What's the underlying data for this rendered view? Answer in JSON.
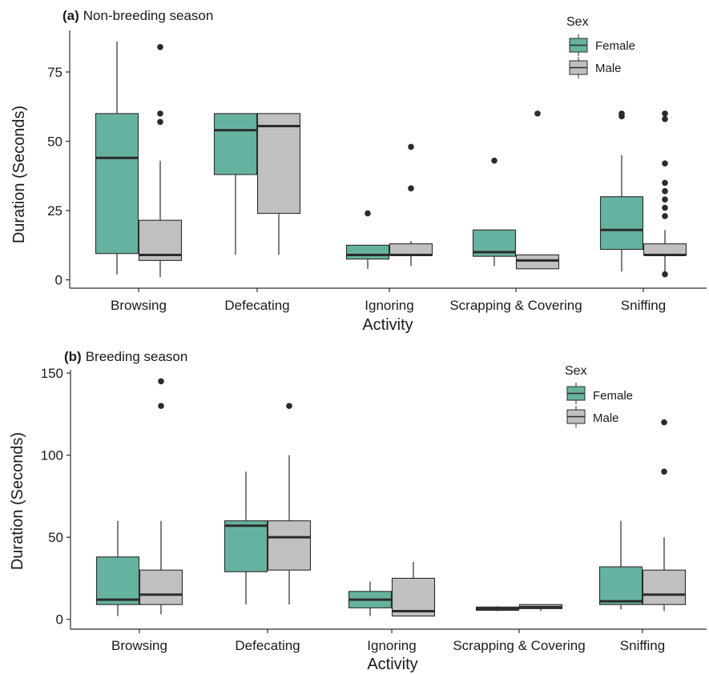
{
  "colors": {
    "female": "#66b2a0",
    "male": "#c0c0c0",
    "line": "#2b2b2b",
    "outlier": "#2b2b2b"
  },
  "chart_data": [
    {
      "type": "box",
      "panel_tag": "(a)",
      "title": "Non-breeding season",
      "xlabel": "Activity",
      "ylabel": "Duration (Seconds)",
      "ylim": [
        -3,
        90
      ],
      "yticks": [
        0,
        25,
        50,
        75
      ],
      "categories": [
        "Browsing",
        "Defecating",
        "Ignoring",
        "Scrapping & Covering",
        "Sniffing"
      ],
      "legend": {
        "title": "Sex",
        "position": "top-right"
      },
      "series": [
        {
          "name": "Female",
          "boxes": [
            {
              "min": 2,
              "q1": 9.5,
              "median": 44,
              "q3": 60,
              "max": 86,
              "outliers": []
            },
            {
              "min": 9,
              "q1": 38,
              "median": 54,
              "q3": 60,
              "max": 60,
              "outliers": []
            },
            {
              "min": 4,
              "q1": 7.5,
              "median": 9,
              "q3": 12.5,
              "max": 12.5,
              "outliers": [
                24
              ]
            },
            {
              "min": 5,
              "q1": 8.5,
              "median": 10,
              "q3": 18,
              "max": 18,
              "outliers": [
                43
              ]
            },
            {
              "min": 3,
              "q1": 11,
              "median": 18,
              "q3": 30,
              "max": 45,
              "outliers": [
                59,
                60
              ]
            }
          ]
        },
        {
          "name": "Male",
          "boxes": [
            {
              "min": 1,
              "q1": 7,
              "median": 9,
              "q3": 21.5,
              "max": 43,
              "outliers": [
                57,
                60,
                84
              ]
            },
            {
              "min": 9,
              "q1": 24,
              "median": 55.5,
              "q3": 60,
              "max": 60,
              "outliers": []
            },
            {
              "min": 5,
              "q1": 9,
              "median": 9,
              "q3": 13,
              "max": 14,
              "outliers": [
                33,
                48
              ]
            },
            {
              "min": 4,
              "q1": 4,
              "median": 7,
              "q3": 9,
              "max": 9,
              "outliers": [
                60
              ]
            },
            {
              "min": 2,
              "q1": 9,
              "median": 9,
              "q3": 13,
              "max": 18,
              "outliers": [
                2,
                23,
                26,
                29,
                32,
                35,
                42,
                58,
                60
              ]
            }
          ]
        }
      ]
    },
    {
      "type": "box",
      "panel_tag": "(b)",
      "title": "Breeding season",
      "xlabel": "Activity",
      "ylabel": "Duration (Seconds)",
      "ylim": [
        -6,
        152
      ],
      "yticks": [
        0,
        50,
        100,
        150
      ],
      "categories": [
        "Browsing",
        "Defecating",
        "Ignoring",
        "Scrapping & Covering",
        "Sniffing"
      ],
      "legend": {
        "title": "Sex",
        "position": "top-right"
      },
      "series": [
        {
          "name": "Female",
          "boxes": [
            {
              "min": 2,
              "q1": 9,
              "median": 12,
              "q3": 38,
              "max": 60,
              "outliers": []
            },
            {
              "min": 9,
              "q1": 29,
              "median": 57,
              "q3": 60,
              "max": 90,
              "outliers": []
            },
            {
              "min": 2,
              "q1": 7,
              "median": 12,
              "q3": 17,
              "max": 23,
              "outliers": []
            },
            {
              "min": 5,
              "q1": 5.5,
              "median": 6.5,
              "q3": 7.5,
              "max": 8,
              "outliers": []
            },
            {
              "min": 6,
              "q1": 9,
              "median": 11,
              "q3": 32,
              "max": 60,
              "outliers": []
            }
          ]
        },
        {
          "name": "Male",
          "boxes": [
            {
              "min": 3,
              "q1": 9,
              "median": 15,
              "q3": 30,
              "max": 60,
              "outliers": [
                130,
                145
              ]
            },
            {
              "min": 9,
              "q1": 30,
              "median": 50,
              "q3": 60,
              "max": 100,
              "outliers": [
                130
              ]
            },
            {
              "min": 2,
              "q1": 2,
              "median": 5,
              "q3": 25,
              "max": 35,
              "outliers": []
            },
            {
              "min": 5,
              "q1": 6.5,
              "median": 7.5,
              "q3": 9,
              "max": 9,
              "outliers": []
            },
            {
              "min": 5,
              "q1": 9,
              "median": 15,
              "q3": 30,
              "max": 50,
              "outliers": [
                90,
                120
              ]
            }
          ]
        }
      ]
    }
  ]
}
